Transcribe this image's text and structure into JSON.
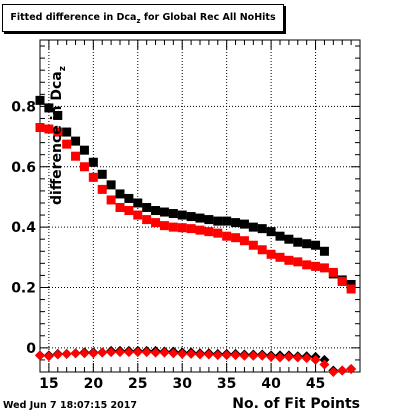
{
  "title": {
    "prefix": "Fitted difference in Dca",
    "subscript": "z",
    "suffix": " for Global Rec All NoHits"
  },
  "footer": {
    "timestamp": "Wed Jun  7 18:07:15 2017"
  },
  "colors": {
    "black": "#000000",
    "red": "#ff0000",
    "grid": "#000000"
  },
  "chart_data": {
    "type": "scatter",
    "title": "Fitted difference in Dca_z for Global Rec All NoHits",
    "xlabel": "No. of Fit Points",
    "ylabel": {
      "main": "difference in Dca",
      "subscript": "z"
    },
    "xlim": [
      14,
      50
    ],
    "ylim": [
      -0.08,
      1.02
    ],
    "xticks": [
      15,
      20,
      25,
      30,
      35,
      40,
      45
    ],
    "yticks": [
      0,
      0.2,
      0.4,
      0.6,
      0.8
    ],
    "ytick_labels": [
      "0",
      "0.2",
      "0.4",
      "0.6",
      "0.8"
    ],
    "grid": true,
    "series": [
      {
        "marker": "square",
        "color": "#000000",
        "x": [
          14,
          15,
          16,
          17,
          18,
          19,
          20,
          21,
          22,
          23,
          24,
          25,
          26,
          27,
          28,
          29,
          30,
          31,
          32,
          33,
          34,
          35,
          36,
          37,
          38,
          39,
          40,
          41,
          42,
          43,
          44,
          45,
          46,
          47,
          48,
          49
        ],
        "y": [
          0.82,
          0.795,
          0.77,
          0.715,
          0.685,
          0.655,
          0.615,
          0.575,
          0.54,
          0.51,
          0.495,
          0.48,
          0.465,
          0.455,
          0.45,
          0.445,
          0.44,
          0.435,
          0.43,
          0.425,
          0.42,
          0.42,
          0.415,
          0.41,
          0.4,
          0.395,
          0.385,
          0.37,
          0.36,
          0.35,
          0.345,
          0.34,
          0.32,
          0.245,
          0.225,
          0.21
        ]
      },
      {
        "marker": "square",
        "color": "#ff0000",
        "x": [
          14,
          15,
          16,
          17,
          18,
          19,
          20,
          21,
          22,
          23,
          24,
          25,
          26,
          27,
          28,
          29,
          30,
          31,
          32,
          33,
          34,
          35,
          36,
          37,
          38,
          39,
          40,
          41,
          42,
          43,
          44,
          45,
          46,
          47,
          48,
          49
        ],
        "y": [
          0.73,
          0.725,
          0.715,
          0.675,
          0.635,
          0.6,
          0.565,
          0.525,
          0.49,
          0.465,
          0.455,
          0.44,
          0.425,
          0.415,
          0.405,
          0.4,
          0.398,
          0.395,
          0.39,
          0.385,
          0.38,
          0.37,
          0.365,
          0.355,
          0.34,
          0.325,
          0.31,
          0.3,
          0.29,
          0.285,
          0.275,
          0.27,
          0.265,
          0.25,
          0.22,
          0.195
        ]
      },
      {
        "marker": "diamond",
        "color": "#000000",
        "x": [
          14,
          15,
          16,
          17,
          18,
          19,
          20,
          21,
          22,
          23,
          24,
          25,
          26,
          27,
          28,
          29,
          30,
          31,
          32,
          33,
          34,
          35,
          36,
          37,
          38,
          39,
          40,
          41,
          42,
          43,
          44,
          45,
          46,
          47,
          48,
          49
        ],
        "y": [
          -0.025,
          -0.025,
          -0.02,
          -0.02,
          -0.018,
          -0.015,
          -0.015,
          -0.015,
          -0.01,
          -0.01,
          -0.01,
          -0.01,
          -0.01,
          -0.01,
          -0.012,
          -0.012,
          -0.015,
          -0.015,
          -0.018,
          -0.018,
          -0.02,
          -0.02,
          -0.02,
          -0.022,
          -0.022,
          -0.022,
          -0.025,
          -0.025,
          -0.025,
          -0.028,
          -0.028,
          -0.03,
          -0.04,
          -0.075,
          -0.075,
          -0.07
        ]
      },
      {
        "marker": "diamond",
        "color": "#ff0000",
        "x": [
          14,
          15,
          16,
          17,
          18,
          19,
          20,
          21,
          22,
          23,
          24,
          25,
          26,
          27,
          28,
          29,
          30,
          31,
          32,
          33,
          34,
          35,
          36,
          37,
          38,
          39,
          40,
          41,
          42,
          43,
          44,
          45,
          46,
          47,
          48,
          49
        ],
        "y": [
          -0.025,
          -0.028,
          -0.022,
          -0.02,
          -0.018,
          -0.018,
          -0.018,
          -0.016,
          -0.014,
          -0.014,
          -0.014,
          -0.014,
          -0.014,
          -0.016,
          -0.016,
          -0.018,
          -0.02,
          -0.02,
          -0.022,
          -0.022,
          -0.024,
          -0.024,
          -0.024,
          -0.026,
          -0.026,
          -0.026,
          -0.03,
          -0.032,
          -0.03,
          -0.032,
          -0.034,
          -0.04,
          -0.055,
          -0.08,
          -0.075,
          -0.07
        ]
      }
    ]
  }
}
